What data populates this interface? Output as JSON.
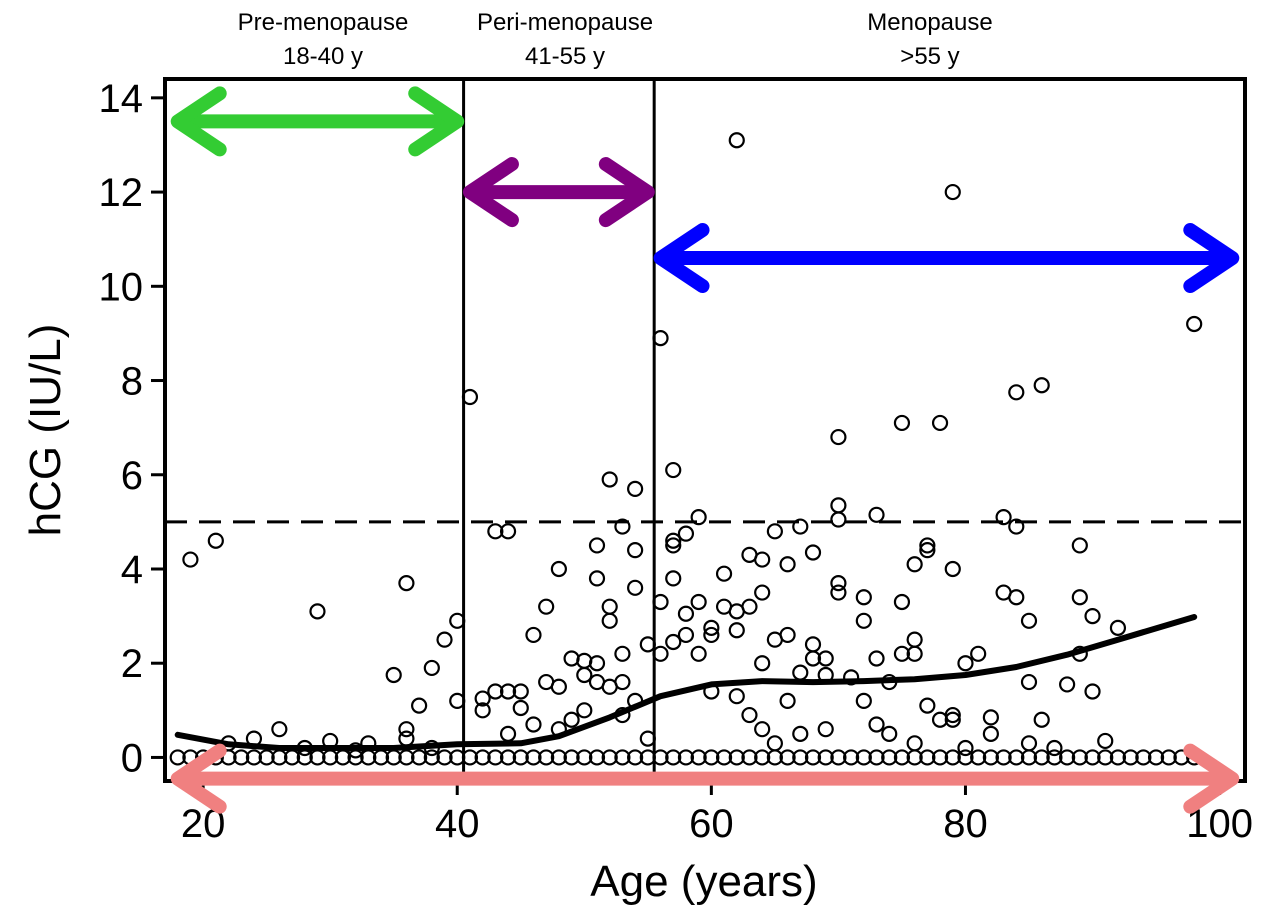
{
  "chart_data": {
    "type": "scatter",
    "xlabel": "Age (years)",
    "ylabel": "hCG (IU/L)",
    "xlim": [
      17,
      102
    ],
    "ylim": [
      -0.5,
      14.4
    ],
    "x_ticks": [
      20,
      40,
      60,
      80,
      100
    ],
    "y_ticks": [
      0,
      2,
      4,
      6,
      8,
      10,
      12,
      14
    ],
    "grid": false,
    "reference_line": {
      "y": 5,
      "style": "dashed"
    },
    "phase_dividers": [
      40.5,
      55.5
    ],
    "phases": [
      {
        "line1": "Pre-menopause",
        "line2": "18-40 y",
        "from": 18,
        "to": 40,
        "arrow_color": "#33cc33",
        "arrow_y": 13.5
      },
      {
        "line1": "Peri-menopause",
        "line2": "41-55 y",
        "from": 41,
        "to": 55,
        "arrow_color": "#800080",
        "arrow_y": 12.0
      },
      {
        "line1": "Menopause",
        "line2": ">55 y",
        "from": 56,
        "to": 101,
        "arrow_color": "#0000ff",
        "arrow_y": 10.6
      }
    ],
    "bottom_arrow": {
      "from": 18,
      "to": 101,
      "y": -0.45,
      "color": "#f08080"
    },
    "series": [
      {
        "kind": "points",
        "marker": "open-circle",
        "points": [
          [
            19,
            4.2
          ],
          [
            21,
            4.6
          ],
          [
            29,
            3.1
          ],
          [
            36,
            3.7
          ],
          [
            35,
            1.75
          ],
          [
            38,
            1.9
          ],
          [
            39,
            2.5
          ],
          [
            40,
            2.9
          ],
          [
            37,
            1.1
          ],
          [
            40,
            1.2
          ],
          [
            26,
            0.6
          ],
          [
            33,
            0.3
          ],
          [
            36,
            0.6
          ],
          [
            36,
            0.4
          ],
          [
            38,
            0.2
          ],
          [
            24,
            0.4
          ],
          [
            22,
            0.3
          ],
          [
            28,
            0.2
          ],
          [
            30,
            0.35
          ],
          [
            32,
            0.15
          ],
          [
            41,
            7.65
          ],
          [
            43,
            4.8
          ],
          [
            44,
            4.8
          ],
          [
            42,
            1.25
          ],
          [
            42,
            1.0
          ],
          [
            43,
            1.4
          ],
          [
            44,
            1.4
          ],
          [
            45,
            1.05
          ],
          [
            45,
            1.4
          ],
          [
            46,
            2.6
          ],
          [
            47,
            3.2
          ],
          [
            48,
            4.0
          ],
          [
            47,
            1.6
          ],
          [
            48,
            1.5
          ],
          [
            49,
            2.1
          ],
          [
            50,
            2.05
          ],
          [
            50,
            1.75
          ],
          [
            51,
            2.0
          ],
          [
            51,
            1.6
          ],
          [
            52,
            1.5
          ],
          [
            52,
            5.9
          ],
          [
            54,
            5.7
          ],
          [
            53,
            4.9
          ],
          [
            54,
            4.4
          ],
          [
            51,
            4.5
          ],
          [
            51,
            3.8
          ],
          [
            52,
            3.2
          ],
          [
            52,
            2.9
          ],
          [
            53,
            2.2
          ],
          [
            54,
            3.6
          ],
          [
            54,
            1.2
          ],
          [
            53,
            0.9
          ],
          [
            55,
            2.4
          ],
          [
            53,
            1.6
          ],
          [
            49,
            0.8
          ],
          [
            50,
            1.0
          ],
          [
            48,
            0.6
          ],
          [
            46,
            0.7
          ],
          [
            44,
            0.5
          ],
          [
            55,
            0.4
          ],
          [
            56,
            8.9
          ],
          [
            57,
            6.1
          ],
          [
            57,
            4.6
          ],
          [
            57,
            4.5
          ],
          [
            58,
            4.75
          ],
          [
            59,
            5.1
          ],
          [
            56,
            3.3
          ],
          [
            57,
            3.8
          ],
          [
            58,
            3.05
          ],
          [
            59,
            3.3
          ],
          [
            56,
            2.2
          ],
          [
            57,
            2.45
          ],
          [
            58,
            2.6
          ],
          [
            59,
            2.2
          ],
          [
            60,
            2.75
          ],
          [
            60,
            2.6
          ],
          [
            61,
            3.2
          ],
          [
            61,
            3.9
          ],
          [
            62,
            3.1
          ],
          [
            63,
            3.2
          ],
          [
            64,
            3.5
          ],
          [
            62,
            2.7
          ],
          [
            63,
            4.3
          ],
          [
            64,
            4.2
          ],
          [
            65,
            4.8
          ],
          [
            66,
            4.1
          ],
          [
            67,
            4.9
          ],
          [
            68,
            4.35
          ],
          [
            64,
            2.0
          ],
          [
            65,
            2.5
          ],
          [
            66,
            2.6
          ],
          [
            67,
            1.8
          ],
          [
            68,
            2.4
          ],
          [
            69,
            1.75
          ],
          [
            68,
            2.1
          ],
          [
            69,
            2.1
          ],
          [
            70,
            3.5
          ],
          [
            70,
            3.7
          ],
          [
            70,
            5.05
          ],
          [
            70,
            5.35
          ],
          [
            70,
            6.8
          ],
          [
            72,
            3.4
          ],
          [
            73,
            5.15
          ],
          [
            72,
            2.9
          ],
          [
            73,
            2.1
          ],
          [
            74,
            1.6
          ],
          [
            75,
            7.1
          ],
          [
            75,
            3.3
          ],
          [
            76,
            4.1
          ],
          [
            77,
            4.5
          ],
          [
            77,
            4.4
          ],
          [
            75,
            2.2
          ],
          [
            76,
            2.5
          ],
          [
            76,
            2.2
          ],
          [
            78,
            7.1
          ],
          [
            79,
            12.0
          ],
          [
            79,
            4.0
          ],
          [
            80,
            2.0
          ],
          [
            81,
            2.2
          ],
          [
            79,
            0.8
          ],
          [
            79,
            0.9
          ],
          [
            82,
            0.85
          ],
          [
            83,
            5.1
          ],
          [
            84,
            4.9
          ],
          [
            83,
            3.5
          ],
          [
            84,
            3.4
          ],
          [
            85,
            2.9
          ],
          [
            85,
            1.6
          ],
          [
            86,
            0.8
          ],
          [
            85,
            0.3
          ],
          [
            84,
            7.75
          ],
          [
            86,
            7.9
          ],
          [
            88,
            1.55
          ],
          [
            89,
            4.5
          ],
          [
            89,
            3.4
          ],
          [
            90,
            3.0
          ],
          [
            89,
            2.2
          ],
          [
            90,
            1.4
          ],
          [
            91,
            0.35
          ],
          [
            92,
            2.75
          ],
          [
            98,
            9.2
          ],
          [
            62,
            13.1
          ],
          [
            60,
            1.4
          ],
          [
            62,
            1.3
          ],
          [
            63,
            0.9
          ],
          [
            64,
            0.6
          ],
          [
            65,
            0.3
          ],
          [
            66,
            1.2
          ],
          [
            67,
            0.5
          ],
          [
            69,
            0.6
          ],
          [
            71,
            1.7
          ],
          [
            72,
            1.2
          ],
          [
            73,
            0.7
          ],
          [
            74,
            0.5
          ],
          [
            76,
            0.3
          ],
          [
            77,
            1.1
          ],
          [
            78,
            0.8
          ],
          [
            80,
            0.2
          ],
          [
            82,
            0.5
          ],
          [
            87,
            0.2
          ]
        ]
      },
      {
        "kind": "baseline-row",
        "marker": "open-circle",
        "y": 0,
        "x_from": 18,
        "x_to": 98,
        "step": 1
      },
      {
        "kind": "smooth-line",
        "points": [
          [
            18,
            0.48
          ],
          [
            22,
            0.28
          ],
          [
            26,
            0.2
          ],
          [
            30,
            0.2
          ],
          [
            35,
            0.2
          ],
          [
            40,
            0.28
          ],
          [
            45,
            0.3
          ],
          [
            48,
            0.45
          ],
          [
            52,
            0.85
          ],
          [
            56,
            1.3
          ],
          [
            60,
            1.55
          ],
          [
            64,
            1.62
          ],
          [
            68,
            1.6
          ],
          [
            72,
            1.62
          ],
          [
            76,
            1.66
          ],
          [
            80,
            1.75
          ],
          [
            84,
            1.92
          ],
          [
            88,
            2.18
          ],
          [
            92,
            2.5
          ],
          [
            98,
            2.98
          ]
        ]
      }
    ]
  }
}
